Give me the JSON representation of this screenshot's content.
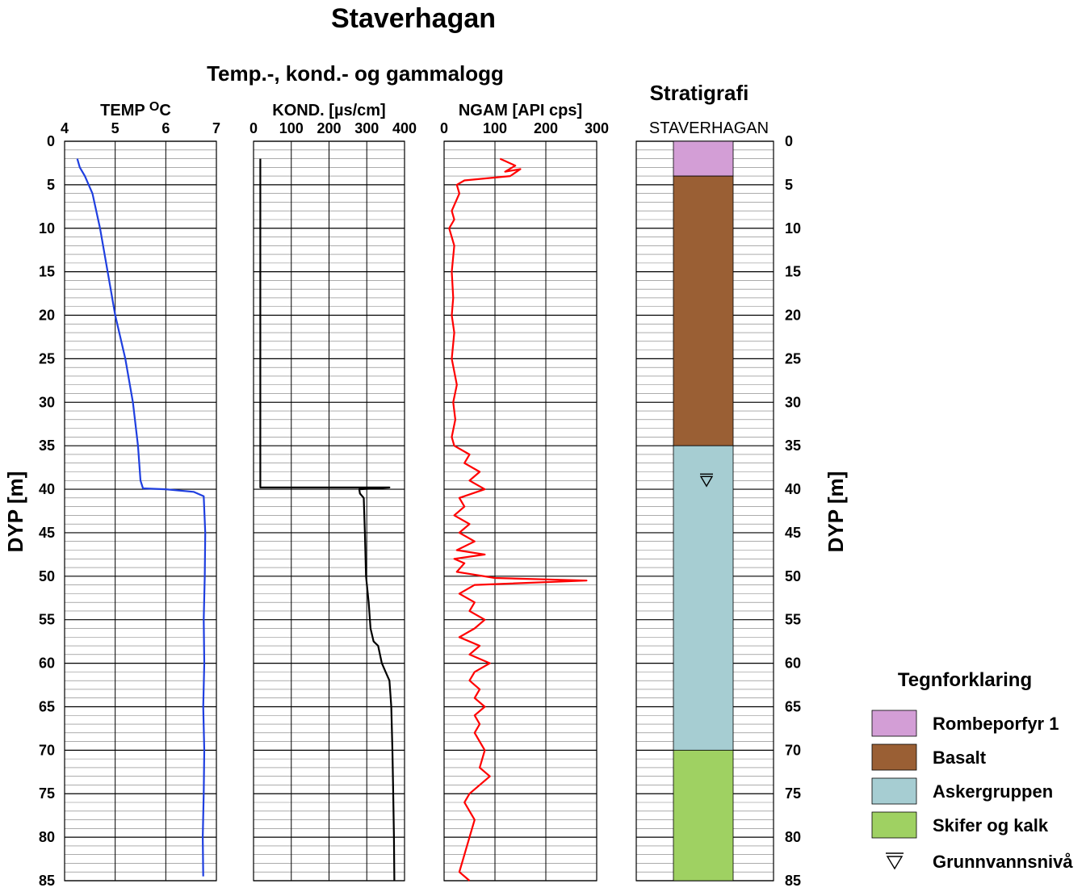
{
  "page": {
    "title": "Staverhagan",
    "subtitle": "Temp.-, kond.- og gammalogg",
    "strat_title": "Stratigrafi",
    "depth_label": "DYP  [m]"
  },
  "legend": {
    "title": "Tegnforklaring",
    "items": [
      {
        "label": "Rombeporfyr 1",
        "color": "#d39ed6"
      },
      {
        "label": "Basalt",
        "color": "#9a5f34"
      },
      {
        "label": "Askergruppen",
        "color": "#a6cdd2"
      },
      {
        "label": "Skifer og kalk",
        "color": "#9fd162"
      },
      {
        "label": "Grunnvannsnivå",
        "symbol": "triangle-down-icon"
      }
    ]
  },
  "chart_data": [
    {
      "type": "line",
      "header": "TEMP  °C",
      "header_prefix": "TEMP",
      "header_unit": "OC",
      "xlim": [
        4,
        7
      ],
      "xticks": [
        4,
        5,
        6,
        7
      ],
      "ylim": [
        0,
        85
      ],
      "yticks": [
        0,
        5,
        10,
        15,
        20,
        25,
        30,
        35,
        40,
        45,
        50,
        55,
        60,
        65,
        70,
        75,
        80,
        85
      ],
      "color": "#1f3fe0",
      "points": [
        [
          4.25,
          2
        ],
        [
          4.3,
          3
        ],
        [
          4.4,
          4
        ],
        [
          4.55,
          6
        ],
        [
          4.7,
          10
        ],
        [
          4.85,
          15
        ],
        [
          5.0,
          20
        ],
        [
          5.2,
          25
        ],
        [
          5.35,
          30
        ],
        [
          5.45,
          35
        ],
        [
          5.5,
          39
        ],
        [
          5.55,
          39.9
        ],
        [
          6.0,
          40.0
        ],
        [
          6.55,
          40.3
        ],
        [
          6.75,
          40.8
        ],
        [
          6.78,
          45
        ],
        [
          6.77,
          50
        ],
        [
          6.75,
          55
        ],
        [
          6.76,
          60
        ],
        [
          6.74,
          65
        ],
        [
          6.76,
          70
        ],
        [
          6.75,
          75
        ],
        [
          6.73,
          80
        ],
        [
          6.74,
          84.5
        ]
      ]
    },
    {
      "type": "line",
      "header": "KOND. [µs/cm]",
      "xlim": [
        0,
        400
      ],
      "xticks": [
        0,
        100,
        200,
        300,
        400
      ],
      "ylim": [
        0,
        85
      ],
      "color": "#000000",
      "points": [
        [
          18,
          2
        ],
        [
          18,
          39.8
        ],
        [
          360,
          39.8
        ],
        [
          280,
          40
        ],
        [
          282,
          40.5
        ],
        [
          292,
          41
        ],
        [
          295,
          45
        ],
        [
          298,
          50
        ],
        [
          305,
          53
        ],
        [
          310,
          56
        ],
        [
          318,
          57.5
        ],
        [
          330,
          58
        ],
        [
          340,
          60
        ],
        [
          350,
          61
        ],
        [
          360,
          62
        ],
        [
          365,
          65
        ],
        [
          368,
          70
        ],
        [
          370,
          75
        ],
        [
          372,
          80
        ],
        [
          373,
          85
        ]
      ]
    },
    {
      "type": "line",
      "header": "NGAM [API cps]",
      "xlim": [
        0,
        300
      ],
      "xticks": [
        0,
        100,
        200,
        300
      ],
      "ylim": [
        0,
        85
      ],
      "color": "#ff0000",
      "points": [
        [
          110,
          2
        ],
        [
          140,
          2.8
        ],
        [
          120,
          3.5
        ],
        [
          150,
          3.2
        ],
        [
          130,
          4
        ],
        [
          40,
          4.5
        ],
        [
          25,
          5
        ],
        [
          30,
          6
        ],
        [
          15,
          8
        ],
        [
          20,
          9
        ],
        [
          10,
          10
        ],
        [
          20,
          12
        ],
        [
          15,
          15
        ],
        [
          18,
          18
        ],
        [
          15,
          20
        ],
        [
          20,
          22
        ],
        [
          15,
          25
        ],
        [
          25,
          28
        ],
        [
          18,
          30
        ],
        [
          22,
          32
        ],
        [
          15,
          34
        ],
        [
          20,
          35
        ],
        [
          50,
          36
        ],
        [
          40,
          37
        ],
        [
          70,
          38
        ],
        [
          50,
          39
        ],
        [
          80,
          40
        ],
        [
          30,
          41
        ],
        [
          40,
          42
        ],
        [
          20,
          43
        ],
        [
          50,
          44
        ],
        [
          30,
          45
        ],
        [
          60,
          46
        ],
        [
          25,
          47
        ],
        [
          80,
          47.5
        ],
        [
          20,
          48
        ],
        [
          40,
          48.5
        ],
        [
          25,
          49.5
        ],
        [
          100,
          50.2
        ],
        [
          280,
          50.5
        ],
        [
          60,
          51
        ],
        [
          30,
          52
        ],
        [
          60,
          53
        ],
        [
          50,
          54
        ],
        [
          80,
          55
        ],
        [
          60,
          56
        ],
        [
          30,
          57
        ],
        [
          70,
          58
        ],
        [
          50,
          59
        ],
        [
          90,
          60
        ],
        [
          60,
          61
        ],
        [
          50,
          62
        ],
        [
          70,
          63
        ],
        [
          60,
          64
        ],
        [
          80,
          65
        ],
        [
          60,
          66
        ],
        [
          70,
          67
        ],
        [
          60,
          68
        ],
        [
          80,
          70
        ],
        [
          70,
          72
        ],
        [
          90,
          73
        ],
        [
          50,
          75
        ],
        [
          40,
          76
        ],
        [
          60,
          78
        ],
        [
          50,
          80
        ],
        [
          40,
          82
        ],
        [
          30,
          84
        ],
        [
          50,
          85
        ]
      ]
    },
    {
      "type": "bar",
      "header": "STAVERHAGAN",
      "ylim": [
        0,
        85
      ],
      "yticks": [
        0,
        5,
        10,
        15,
        20,
        25,
        30,
        35,
        40,
        45,
        50,
        55,
        60,
        65,
        70,
        75,
        80,
        85
      ],
      "layers": [
        {
          "name": "Rombeporfyr 1",
          "top": 0,
          "bottom": 4,
          "color": "#d39ed6"
        },
        {
          "name": "Basalt",
          "top": 4,
          "bottom": 35,
          "color": "#9a5f34"
        },
        {
          "name": "Askergruppen",
          "top": 35,
          "bottom": 70,
          "color": "#a6cdd2"
        },
        {
          "name": "Skifer og kalk",
          "top": 70,
          "bottom": 85,
          "color": "#9fd162"
        }
      ],
      "groundwater_depth": 39
    }
  ]
}
